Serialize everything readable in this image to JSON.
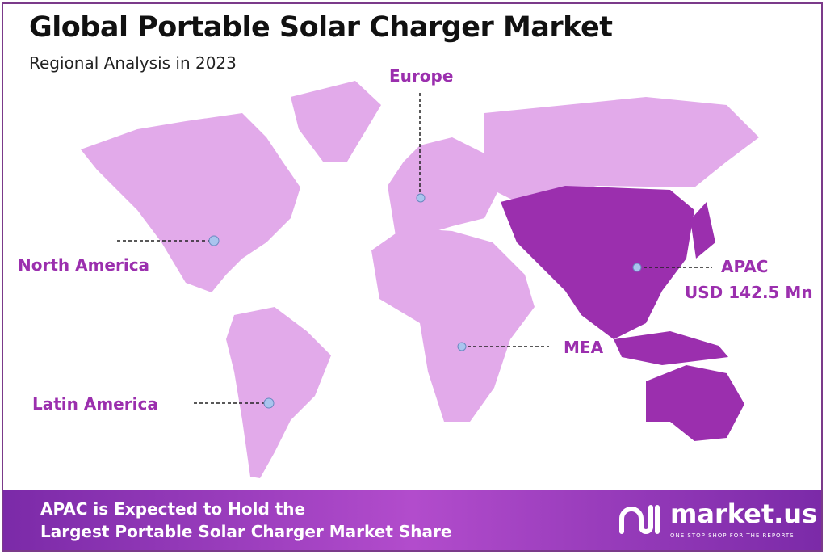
{
  "title": "Global Portable Solar Charger Market",
  "subtitle": "Regional Analysis in 2023",
  "regions": [
    {
      "name": "Europe",
      "value": ""
    },
    {
      "name": "North America",
      "value": ""
    },
    {
      "name": "APAC",
      "value": "USD 142.5 Mn"
    },
    {
      "name": "MEA",
      "value": ""
    },
    {
      "name": "Latin America",
      "value": ""
    }
  ],
  "highlighted_region": "APAC",
  "colors": {
    "land": "#e2aaea",
    "highlight": "#9b2fae",
    "label": "#9b2fae",
    "marker": "#a9c4ee",
    "banner": "#7b2aa8"
  },
  "banner": {
    "line1": "APAC is Expected to Hold the",
    "line2": "Largest Portable Solar Charger Market Share"
  },
  "logo": {
    "name": "market.us",
    "tagline": "ONE STOP SHOP FOR THE REPORTS"
  }
}
